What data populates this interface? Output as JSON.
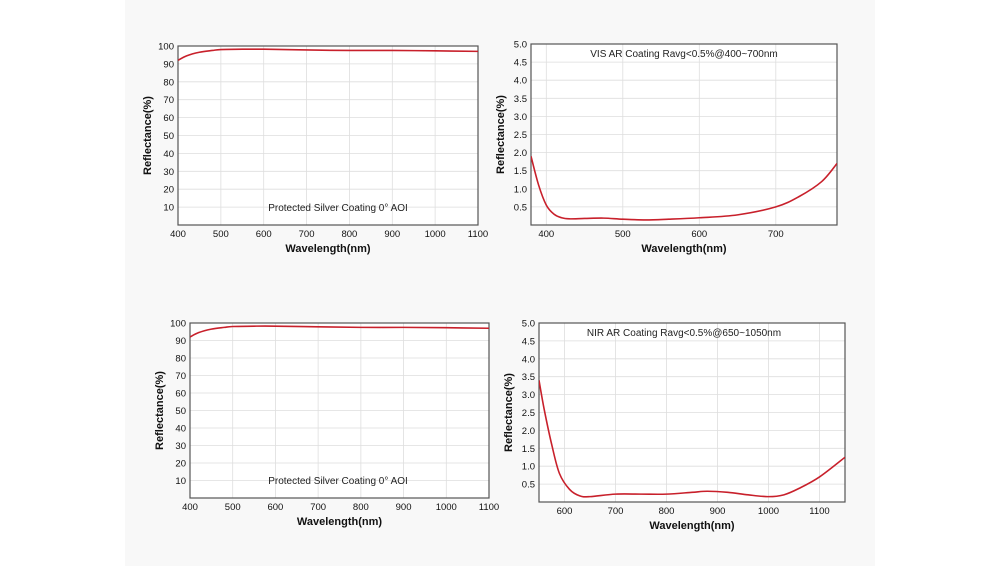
{
  "page": {
    "background": "#f8f8f8",
    "curve_color": "#c8202b",
    "grid_color": "#dedede",
    "frame_color": "#555555"
  },
  "chart_data": [
    {
      "id": "tl",
      "type": "line",
      "annotation": "Protected Silver Coating  0°  AOI",
      "xlabel": "Wavelength(nm)",
      "ylabel": "Reflectance(%)",
      "xlim": [
        400,
        1100
      ],
      "ylim": [
        0,
        100
      ],
      "xticks": [
        400,
        500,
        600,
        700,
        800,
        900,
        1000,
        1100
      ],
      "yticks": [
        10,
        20,
        30,
        40,
        50,
        60,
        70,
        80,
        90,
        100
      ],
      "ytick_decimals": 0,
      "series": [
        {
          "name": "Reflectance",
          "x": [
            400,
            420,
            450,
            480,
            500,
            550,
            600,
            700,
            800,
            900,
            1000,
            1100
          ],
          "y": [
            92,
            94.5,
            96.5,
            97.5,
            98,
            98.2,
            98.2,
            97.8,
            97.5,
            97.5,
            97.3,
            97
          ]
        }
      ]
    },
    {
      "id": "tr",
      "type": "line",
      "annotation": "VIS AR Coating Ravg<0.5%@400~700nm",
      "xlabel": "Wavelength(nm)",
      "ylabel": "Reflectance(%)",
      "xlim": [
        380,
        780
      ],
      "ylim": [
        0,
        5.0
      ],
      "xticks": [
        400,
        500,
        600,
        700
      ],
      "yticks": [
        0.5,
        1.0,
        1.5,
        2.0,
        2.5,
        3.0,
        3.5,
        4.0,
        4.5,
        5.0
      ],
      "ytick_decimals": 1,
      "series": [
        {
          "name": "Reflectance",
          "x": [
            380,
            390,
            400,
            410,
            420,
            430,
            450,
            475,
            500,
            530,
            560,
            600,
            650,
            700,
            730,
            760,
            780
          ],
          "y": [
            1.9,
            1.1,
            0.55,
            0.3,
            0.2,
            0.17,
            0.18,
            0.19,
            0.16,
            0.14,
            0.16,
            0.2,
            0.28,
            0.5,
            0.78,
            1.2,
            1.7
          ]
        }
      ]
    },
    {
      "id": "bl",
      "type": "line",
      "annotation": "Protected Silver Coating  0°  AOI",
      "xlabel": "Wavelength(nm)",
      "ylabel": "Reflectance(%)",
      "xlim": [
        400,
        1100
      ],
      "ylim": [
        0,
        100
      ],
      "xticks": [
        400,
        500,
        600,
        700,
        800,
        900,
        1000,
        1100
      ],
      "yticks": [
        10,
        20,
        30,
        40,
        50,
        60,
        70,
        80,
        90,
        100
      ],
      "ytick_decimals": 0,
      "series": [
        {
          "name": "Reflectance",
          "x": [
            400,
            420,
            450,
            480,
            500,
            550,
            600,
            700,
            800,
            900,
            1000,
            1100
          ],
          "y": [
            92,
            94.5,
            96.5,
            97.5,
            98,
            98.2,
            98.2,
            97.8,
            97.5,
            97.5,
            97.3,
            97
          ]
        }
      ]
    },
    {
      "id": "br",
      "type": "line",
      "annotation": "NIR AR Coating Ravg<0.5%@650~1050nm",
      "xlabel": "Wavelength(nm)",
      "ylabel": "Reflectance(%)",
      "xlim": [
        550,
        1150
      ],
      "ylim": [
        0,
        5.0
      ],
      "xticks": [
        600,
        700,
        800,
        900,
        1000,
        1100
      ],
      "yticks": [
        0.5,
        1.0,
        1.5,
        2.0,
        2.5,
        3.0,
        3.5,
        4.0,
        4.5,
        5.0
      ],
      "ytick_decimals": 1,
      "series": [
        {
          "name": "Reflectance",
          "x": [
            550,
            560,
            575,
            590,
            610,
            630,
            650,
            700,
            750,
            800,
            850,
            880,
            920,
            960,
            1000,
            1030,
            1060,
            1100,
            1150
          ],
          "y": [
            3.4,
            2.6,
            1.6,
            0.8,
            0.35,
            0.17,
            0.15,
            0.22,
            0.22,
            0.22,
            0.27,
            0.3,
            0.27,
            0.2,
            0.15,
            0.2,
            0.38,
            0.7,
            1.25
          ]
        }
      ]
    }
  ]
}
